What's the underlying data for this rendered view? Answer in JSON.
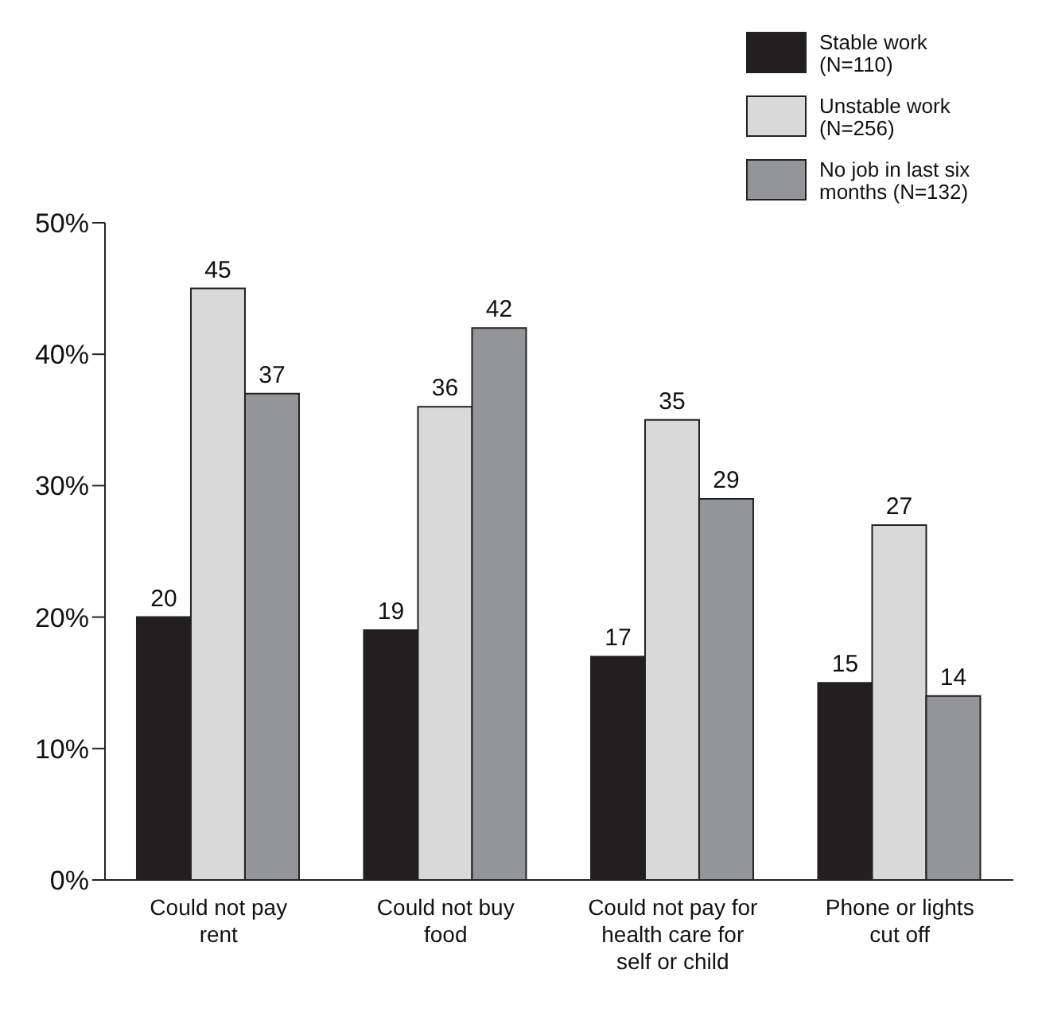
{
  "chart_data": {
    "type": "bar",
    "categories": [
      "Could not pay rent",
      "Could not buy food",
      "Could not pay for health care for self or child",
      "Phone or lights cut off"
    ],
    "series": [
      {
        "name": "Stable work (N=110)",
        "color": "#231f20",
        "values": [
          20,
          19,
          17,
          15
        ]
      },
      {
        "name": "Unstable work (N=256)",
        "color": "#d9d9d9",
        "values": [
          45,
          36,
          35,
          27
        ]
      },
      {
        "name": "No job in last six months (N=132)",
        "color": "#939598",
        "values": [
          37,
          42,
          29,
          14
        ]
      }
    ],
    "ylim": [
      0,
      50
    ],
    "yticks": [
      {
        "value": 0,
        "label": "0%"
      },
      {
        "value": 10,
        "label": "10%"
      },
      {
        "value": 20,
        "label": "20%"
      },
      {
        "value": 30,
        "label": "30%"
      },
      {
        "value": 40,
        "label": "40%"
      },
      {
        "value": 50,
        "label": "50%"
      }
    ],
    "data_labels": true,
    "grid": false,
    "legend": "top right"
  }
}
